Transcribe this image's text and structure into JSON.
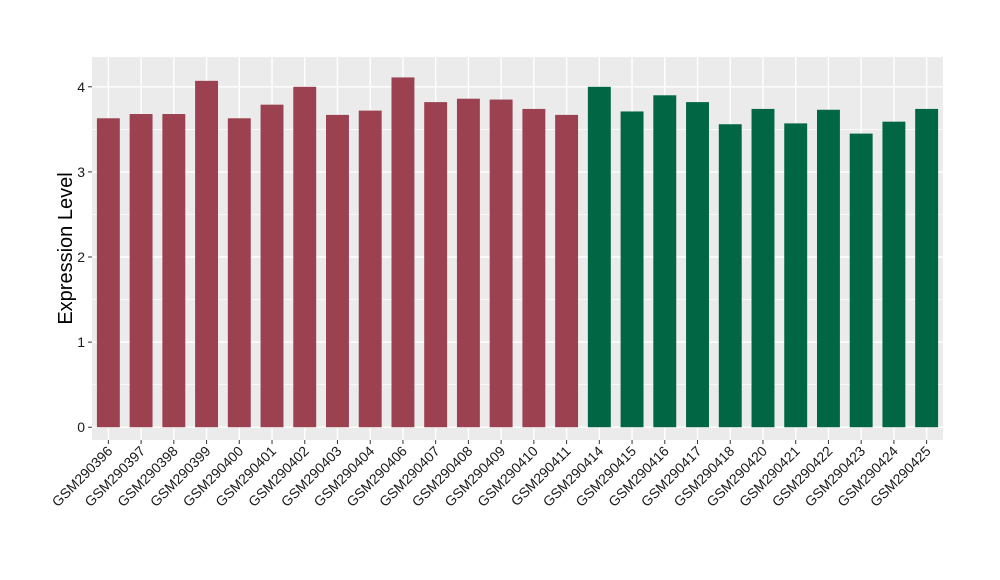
{
  "chart_data": {
    "type": "bar",
    "title": "",
    "xlabel": "",
    "ylabel": "Expression Level",
    "ylim": [
      -0.15,
      4.35
    ],
    "yticks": [
      0,
      1,
      2,
      3,
      4
    ],
    "grid": true,
    "categories": [
      "GSM290396",
      "GSM290397",
      "GSM290398",
      "GSM290399",
      "GSM290400",
      "GSM290401",
      "GSM290402",
      "GSM290403",
      "GSM290404",
      "GSM290406",
      "GSM290407",
      "GSM290408",
      "GSM290409",
      "GSM290410",
      "GSM290411",
      "GSM290414",
      "GSM290415",
      "GSM290416",
      "GSM290417",
      "GSM290418",
      "GSM290420",
      "GSM290421",
      "GSM290422",
      "GSM290423",
      "GSM290424",
      "GSM290425"
    ],
    "values": [
      3.63,
      3.68,
      3.68,
      4.07,
      3.63,
      3.79,
      4.0,
      3.67,
      3.72,
      4.11,
      3.82,
      3.86,
      3.85,
      3.74,
      3.67,
      4.0,
      3.71,
      3.9,
      3.82,
      3.56,
      3.74,
      3.57,
      3.73,
      3.45,
      3.59,
      3.74
    ],
    "groups": [
      "A",
      "A",
      "A",
      "A",
      "A",
      "A",
      "A",
      "A",
      "A",
      "A",
      "A",
      "A",
      "A",
      "A",
      "A",
      "B",
      "B",
      "B",
      "B",
      "B",
      "B",
      "B",
      "B",
      "B",
      "B",
      "B"
    ],
    "group_colors": {
      "A": "#9b4150",
      "B": "#006644"
    },
    "panel_color": "#ebebeb",
    "grid_color": "#ffffff"
  }
}
